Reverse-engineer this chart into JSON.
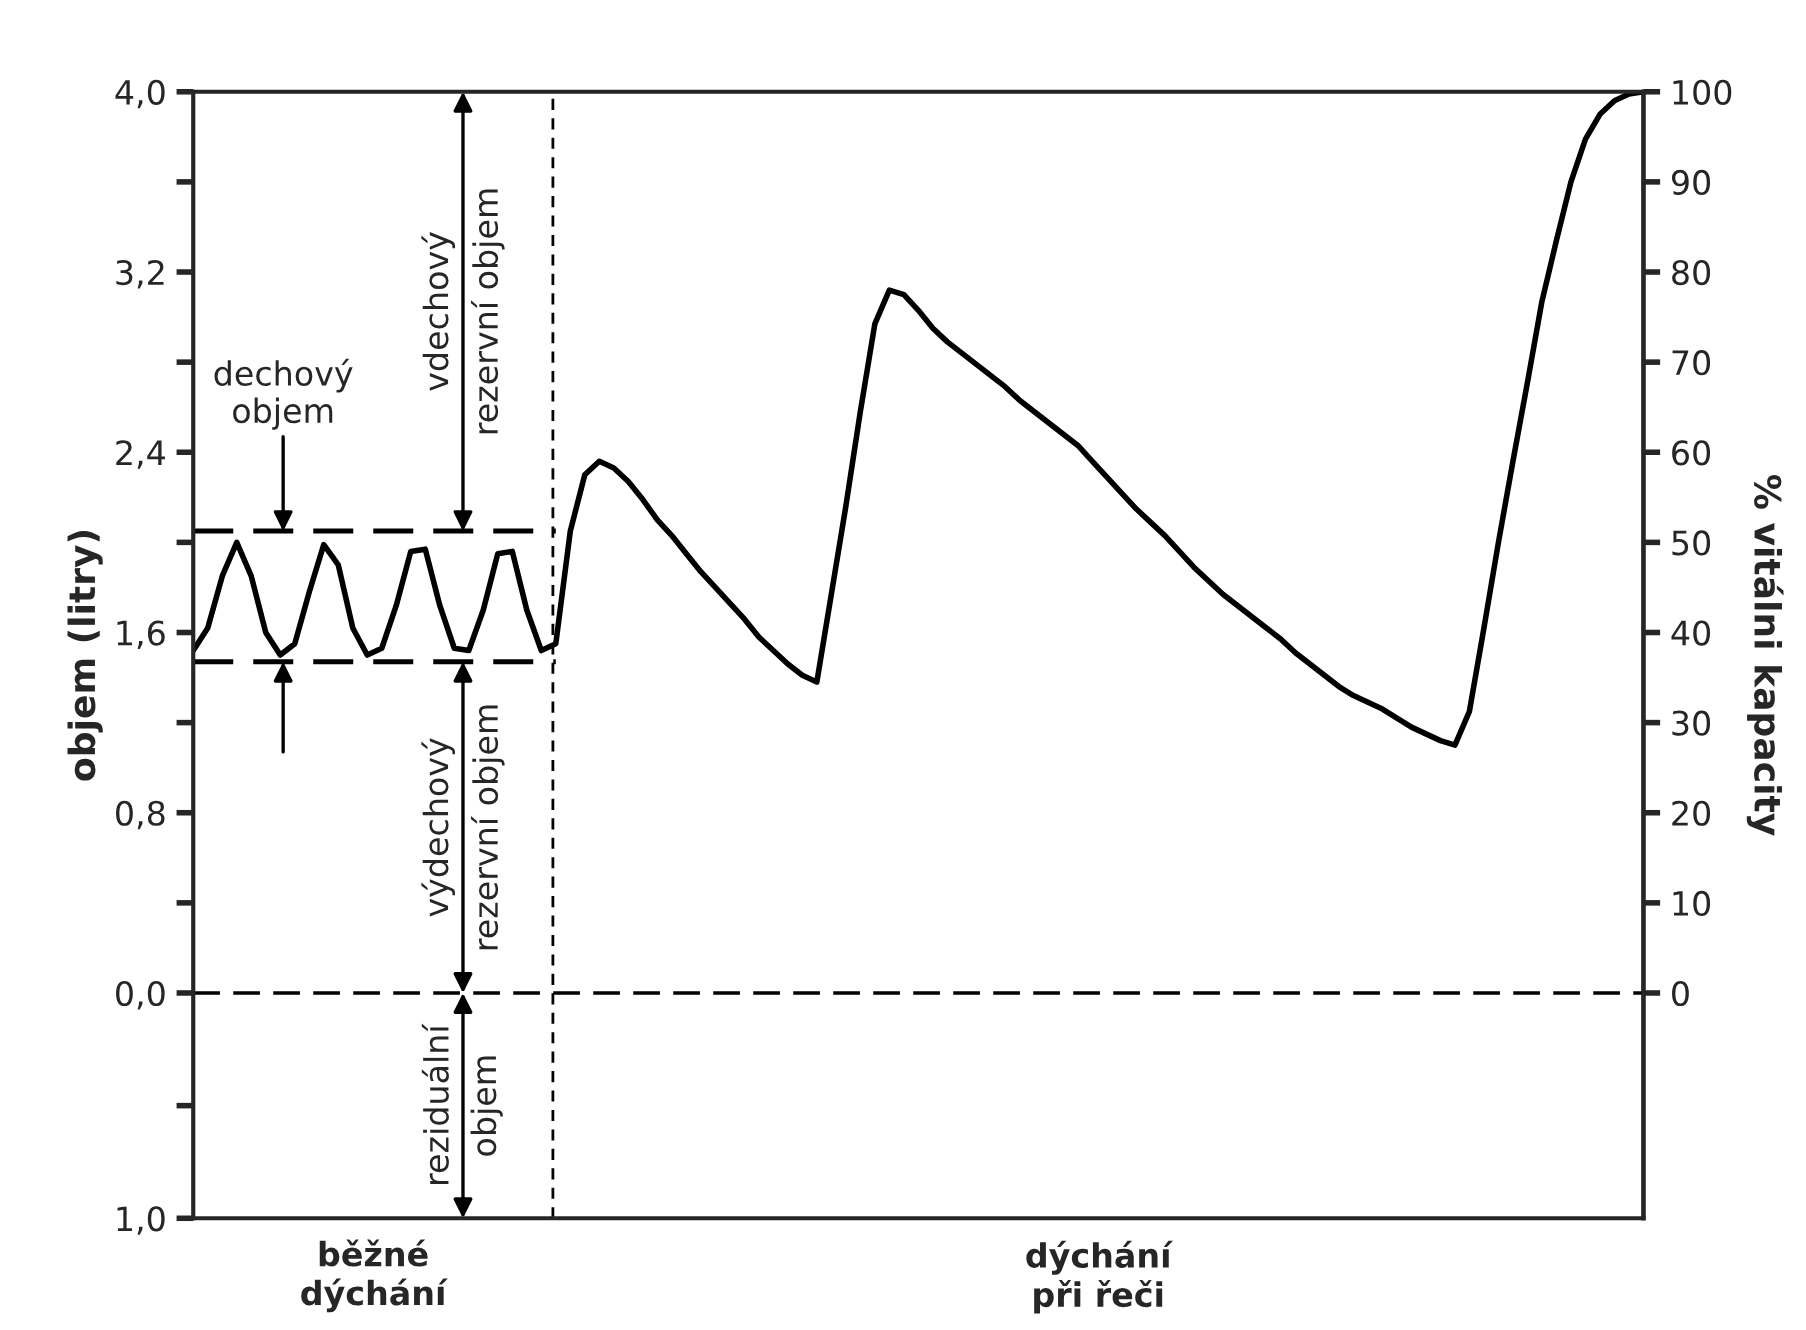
{
  "chart_data": {
    "type": "line",
    "ylabel": "objem (litry)",
    "y2label": "% vitálni kapacity",
    "categories": [
      null,
      null,
      null,
      null,
      null,
      null,
      null,
      null,
      null,
      null,
      null,
      null,
      null,
      null,
      null,
      null,
      null,
      null,
      null,
      null,
      null,
      null,
      null,
      null,
      null,
      null,
      null,
      null,
      null,
      null,
      null,
      null,
      null,
      null,
      null,
      null,
      null,
      null,
      null,
      null,
      null,
      null,
      null,
      null,
      null,
      null,
      null,
      null,
      null,
      null,
      null,
      null,
      null,
      null,
      null,
      null,
      null,
      null,
      null,
      null,
      null,
      null,
      null,
      null,
      null,
      null,
      null,
      null,
      null,
      null,
      null,
      null,
      null,
      null,
      null,
      null,
      null,
      null,
      null,
      null,
      null,
      null,
      null,
      null,
      null,
      null,
      null,
      null,
      null,
      null,
      null,
      null,
      null,
      null,
      null,
      null,
      null,
      null,
      null,
      null,
      null
    ],
    "series": [
      {
        "color": "#000000",
        "line_style": "solid",
        "values": [
          1.52,
          1.62,
          1.85,
          2.0,
          1.85,
          1.6,
          1.5,
          1.55,
          1.78,
          1.99,
          1.9,
          1.62,
          1.5,
          1.53,
          1.72,
          1.96,
          1.97,
          1.72,
          1.53,
          1.52,
          1.7,
          1.95,
          1.96,
          1.7,
          1.52,
          1.55,
          2.05,
          2.3,
          2.36,
          2.33,
          2.27,
          2.19,
          2.1,
          2.03,
          1.95,
          1.87,
          1.8,
          1.73,
          1.66,
          1.58,
          1.52,
          1.46,
          1.41,
          1.38,
          1.77,
          2.16,
          2.58,
          2.97,
          3.12,
          3.1,
          3.03,
          2.95,
          2.89,
          2.84,
          2.79,
          2.74,
          2.69,
          2.63,
          2.58,
          2.53,
          2.48,
          2.43,
          2.36,
          2.29,
          2.22,
          2.15,
          2.09,
          2.03,
          1.96,
          1.89,
          1.83,
          1.77,
          1.72,
          1.67,
          1.62,
          1.57,
          1.51,
          1.46,
          1.41,
          1.36,
          1.32,
          1.29,
          1.26,
          1.22,
          1.18,
          1.15,
          1.12,
          1.1,
          1.25,
          1.62,
          2.0,
          2.36,
          2.71,
          3.07,
          3.34,
          3.6,
          3.79,
          3.9,
          3.96,
          3.99,
          4.0
        ]
      },
      {
        "color": "#000000",
        "line_style": "dashed",
        "values": [
          2.05,
          2.05,
          2.05,
          2.05,
          2.05,
          2.05,
          2.05,
          2.05,
          2.05,
          2.05,
          2.05,
          2.05,
          2.05,
          2.05,
          2.05,
          2.05,
          2.05,
          2.05,
          2.05,
          2.05,
          2.05,
          2.05,
          2.05,
          2.05,
          2.05,
          2.05,
          null,
          null,
          null,
          null,
          null,
          null,
          null,
          null,
          null,
          null,
          null,
          null,
          null,
          null,
          null,
          null,
          null,
          null,
          null,
          null,
          null,
          null,
          null,
          null,
          null,
          null,
          null,
          null,
          null,
          null,
          null,
          null,
          null,
          null,
          null,
          null,
          null,
          null,
          null,
          null,
          null,
          null,
          null,
          null,
          null,
          null,
          null,
          null,
          null,
          null,
          null,
          null,
          null,
          null,
          null,
          null,
          null,
          null,
          null,
          null,
          null,
          null,
          null,
          null,
          null,
          null,
          null,
          null,
          null,
          null,
          null,
          null,
          null,
          null,
          null
        ]
      },
      {
        "color": "#000000",
        "line_style": "dashed",
        "values": [
          1.47,
          1.47,
          1.47,
          1.47,
          1.47,
          1.47,
          1.47,
          1.47,
          1.47,
          1.47,
          1.47,
          1.47,
          1.47,
          1.47,
          1.47,
          1.47,
          1.47,
          1.47,
          1.47,
          1.47,
          1.47,
          1.47,
          1.47,
          1.47,
          1.47,
          1.47,
          null,
          null,
          null,
          null,
          null,
          null,
          null,
          null,
          null,
          null,
          null,
          null,
          null,
          null,
          null,
          null,
          null,
          null,
          null,
          null,
          null,
          null,
          null,
          null,
          null,
          null,
          null,
          null,
          null,
          null,
          null,
          null,
          null,
          null,
          null,
          null,
          null,
          null,
          null,
          null,
          null,
          null,
          null,
          null,
          null,
          null,
          null,
          null,
          null,
          null,
          null,
          null,
          null,
          null,
          null,
          null,
          null,
          null,
          null,
          null,
          null,
          null,
          null,
          null,
          null,
          null,
          null,
          null,
          null,
          null,
          null,
          null,
          null,
          null,
          null
        ]
      }
    ],
    "ylim": [
      -1.0,
      4.0
    ],
    "yticks": [
      {
        "value": -1.0,
        "label": "1,0"
      },
      {
        "value": -0.5,
        "label": null
      },
      {
        "value": 0,
        "label": "0,0"
      },
      {
        "value": 0.4,
        "label": null
      },
      {
        "value": 0.8,
        "label": "0,8"
      },
      {
        "value": 1.2,
        "label": null
      },
      {
        "value": 1.6,
        "label": "1,6"
      },
      {
        "value": 2.0,
        "label": null
      },
      {
        "value": 2.4,
        "label": "2,4"
      },
      {
        "value": 2.8,
        "label": null
      },
      {
        "value": 3.2,
        "label": "3,2"
      },
      {
        "value": 3.6,
        "label": null
      },
      {
        "value": 4.0,
        "label": "4,0"
      }
    ],
    "y2lim": [
      -25,
      100
    ],
    "y2ticks": [
      0,
      10,
      20,
      30,
      40,
      50,
      60,
      70,
      80,
      90,
      100
    ],
    "ref_lines": [
      {
        "axis": "y",
        "value": 0,
        "color": "#000000",
        "line_style": "dashed"
      }
    ],
    "annotations": [
      "dechový\nobjem",
      "vdechový\nrezervní objem",
      "výdechový\nrezervní objem",
      "reziduální\nobjem",
      "běžné\ndýchání",
      "dýchání\npři řeči"
    ],
    "grid": false
  }
}
